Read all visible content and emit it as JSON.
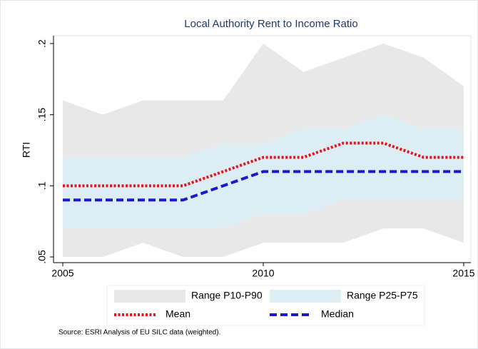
{
  "chart_data": {
    "type": "line",
    "title": "Local Authority Rent to Income Ratio",
    "y_label": "RTI",
    "note": "Source:  ESRI Analysis of EU SILC data (weighted).",
    "x": [
      2005,
      2006,
      2007,
      2008,
      2009,
      2010,
      2011,
      2012,
      2013,
      2014,
      2015
    ],
    "xlim": [
      2005,
      2015
    ],
    "xticks": [
      2005,
      2010,
      2015
    ],
    "ylim": [
      0.05,
      0.2
    ],
    "yticks": [
      {
        "value": 0.05,
        "label": ".05"
      },
      {
        "value": 0.1,
        "label": ".1"
      },
      {
        "value": 0.15,
        "label": ".15"
      },
      {
        "value": 0.2,
        "label": ".2"
      }
    ],
    "series": [
      {
        "name": "Range P10-P90",
        "color": "#e8e8e8",
        "low": [
          0.05,
          0.05,
          0.06,
          0.05,
          0.05,
          0.06,
          0.06,
          0.06,
          0.07,
          0.07,
          0.06
        ],
        "high": [
          0.16,
          0.15,
          0.16,
          0.16,
          0.16,
          0.2,
          0.18,
          0.19,
          0.2,
          0.19,
          0.17
        ]
      },
      {
        "name": "Range P25-P75",
        "color": "#dcedf4",
        "low": [
          0.07,
          0.07,
          0.07,
          0.07,
          0.07,
          0.08,
          0.08,
          0.09,
          0.09,
          0.09,
          0.09
        ],
        "high": [
          0.12,
          0.12,
          0.12,
          0.12,
          0.13,
          0.13,
          0.14,
          0.14,
          0.15,
          0.14,
          0.14
        ]
      },
      {
        "name": "Mean",
        "color": "#e8141c",
        "style": "dot",
        "values": [
          0.1,
          0.1,
          0.1,
          0.1,
          0.11,
          0.12,
          0.12,
          0.13,
          0.13,
          0.12,
          0.12
        ]
      },
      {
        "name": "Median",
        "color": "#1a1acc",
        "style": "dash",
        "values": [
          0.09,
          0.09,
          0.09,
          0.09,
          0.1,
          0.11,
          0.11,
          0.11,
          0.11,
          0.11,
          0.11
        ]
      }
    ]
  }
}
